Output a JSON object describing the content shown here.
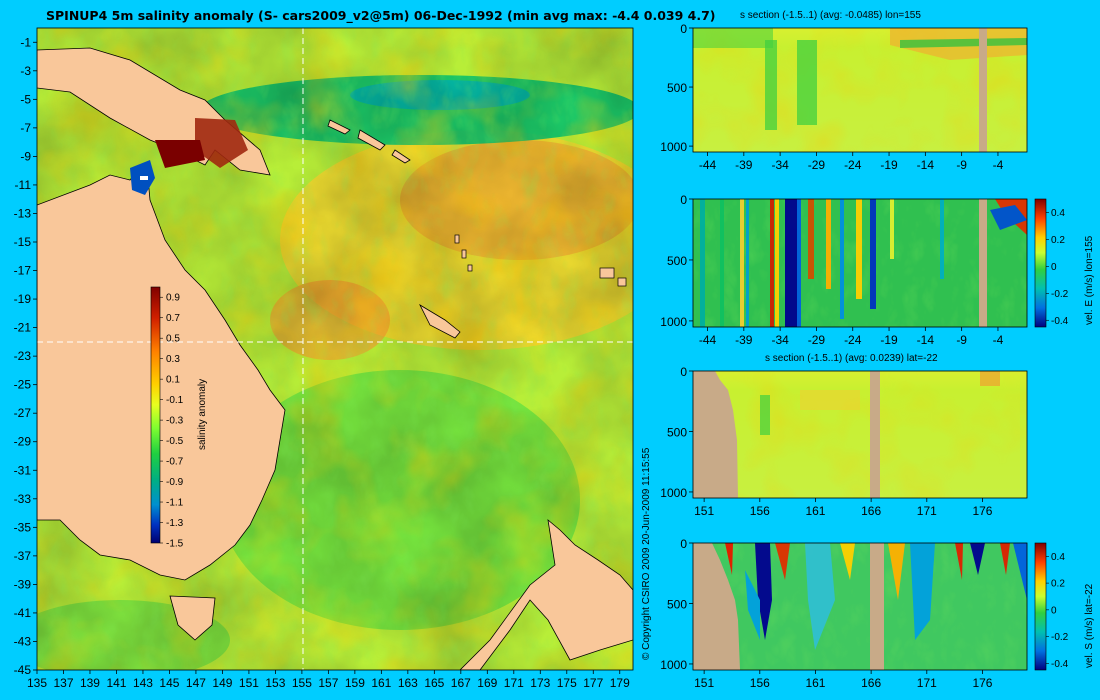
{
  "title": "SPINUP4 5m salinity anomaly (S- cars2009_v2@5m) 06-Dec-1992 (min avg max: -4.4 0.039 4.7)",
  "copyright": "© Copyright CSIRO 2009   20-Jun-2009 11:15:55",
  "colors": {
    "background": "#00cdff",
    "land": "#f9c79a",
    "section_land": "#c8aa88"
  },
  "chart_data": [
    {
      "type": "heatmap",
      "name": "surface-salinity-map",
      "x_ticks": [
        "135",
        "137",
        "139",
        "141",
        "143",
        "145",
        "147",
        "149",
        "151",
        "153",
        "155",
        "157",
        "159",
        "161",
        "163",
        "165",
        "167",
        "169",
        "171",
        "173",
        "175",
        "177",
        "179"
      ],
      "y_ticks": [
        "-1",
        "-3",
        "-5",
        "-7",
        "-9",
        "-11",
        "-13",
        "-15",
        "-17",
        "-19",
        "-21",
        "-23",
        "-25",
        "-27",
        "-29",
        "-31",
        "-33",
        "-35",
        "-37",
        "-39",
        "-41",
        "-43",
        "-45"
      ],
      "xlim": [
        135,
        180
      ],
      "ylim": [
        -45,
        0
      ],
      "crosshair": {
        "lon": 155,
        "lat": -22
      },
      "colorbar": {
        "label": "salinity anomaly",
        "ticks": [
          "0.9",
          "0.7",
          "0.5",
          "0.3",
          "0.1",
          "-0.1",
          "-0.3",
          "-0.5",
          "-0.7",
          "-0.9",
          "-1.1",
          "-1.3",
          "-1.5"
        ],
        "range": [
          -1.5,
          1.0
        ]
      }
    },
    {
      "type": "heatmap",
      "name": "salinity-section-lon155",
      "title": "s section (-1.5..1) (avg: -0.0485) lon=155",
      "x_ticks": [
        "-44",
        "-39",
        "-34",
        "-29",
        "-24",
        "-19",
        "-14",
        "-9",
        "-4"
      ],
      "y_ticks": [
        "0",
        "500",
        "1000"
      ],
      "xlim": [
        -46,
        0
      ],
      "ylim": [
        1050,
        0
      ]
    },
    {
      "type": "heatmap",
      "name": "velocity-east-section-lon155",
      "x_ticks": [
        "-44",
        "-39",
        "-34",
        "-29",
        "-24",
        "-19",
        "-14",
        "-9",
        "-4"
      ],
      "y_ticks": [
        "0",
        "500",
        "1000"
      ],
      "xlim": [
        -46,
        0
      ],
      "ylim": [
        1050,
        0
      ],
      "colorbar": {
        "label": "vel. E (m/s) lon=155",
        "ticks": [
          "0.4",
          "0.2",
          "0",
          "-0.2",
          "-0.4"
        ],
        "range": [
          -0.45,
          0.5
        ]
      }
    },
    {
      "type": "heatmap",
      "name": "salinity-section-lat-22",
      "title": "s section (-1.5..1) (avg: 0.0239) lat=-22",
      "x_ticks": [
        "151",
        "156",
        "161",
        "166",
        "171",
        "176"
      ],
      "y_ticks": [
        "0",
        "500",
        "1000"
      ],
      "xlim": [
        150,
        180
      ],
      "ylim": [
        1050,
        0
      ]
    },
    {
      "type": "heatmap",
      "name": "velocity-south-section-lat-22",
      "x_ticks": [
        "151",
        "156",
        "161",
        "166",
        "171",
        "176"
      ],
      "y_ticks": [
        "0",
        "500",
        "1000"
      ],
      "xlim": [
        150,
        180
      ],
      "ylim": [
        1050,
        0
      ],
      "colorbar": {
        "label": "vel. S (m/s) lat=-22",
        "ticks": [
          "0.4",
          "0.2",
          "0",
          "-0.2",
          "-0.4"
        ],
        "range": [
          -0.45,
          0.5
        ]
      }
    }
  ]
}
